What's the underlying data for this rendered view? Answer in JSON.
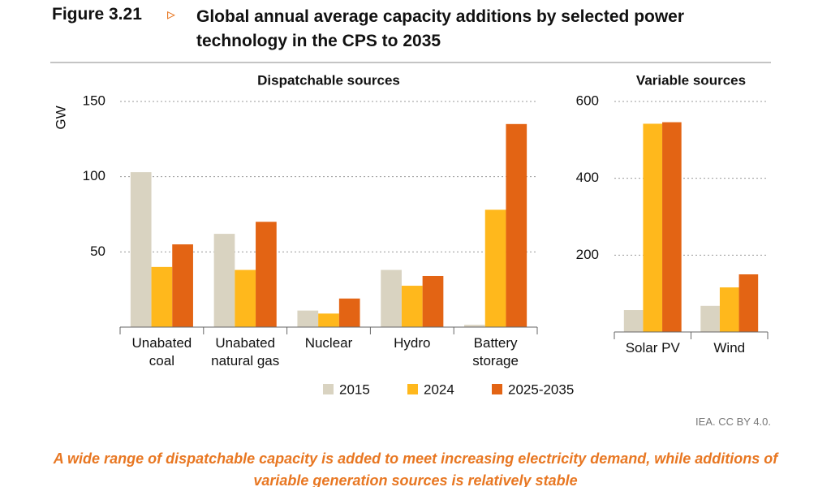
{
  "figure": {
    "label": "Figure 3.21",
    "marker": "▹",
    "title": "Global annual average capacity additions by selected power technology in the CPS to 2035"
  },
  "source": "IEA. CC BY 4.0.",
  "caption": "A wide range of dispatchable capacity is added to meet increasing electricity demand, while additions of variable generation sources is relatively stable",
  "chart_data": [
    {
      "type": "bar",
      "title": "Dispatchable sources",
      "y_label": "GW",
      "categories": [
        "Unabated coal",
        "Unabated natural gas",
        "Nuclear",
        "Hydro",
        "Battery storage"
      ],
      "series": [
        {
          "name": "2015",
          "color": "#d9d3c1",
          "values": [
            103,
            62,
            11,
            38,
            1.5
          ]
        },
        {
          "name": "2024",
          "color": "#ffb81c",
          "values": [
            40,
            38,
            9,
            27.5,
            78
          ]
        },
        {
          "name": "2025-2035",
          "color": "#e36414",
          "values": [
            55,
            70,
            19,
            34,
            135
          ]
        }
      ],
      "ylim": [
        0,
        150
      ],
      "yticks": [
        50,
        100,
        150
      ],
      "grid": true,
      "legend": "bottom"
    },
    {
      "type": "bar",
      "title": "Variable sources",
      "categories": [
        "Solar PV",
        "Wind"
      ],
      "series": [
        {
          "name": "2015",
          "color": "#d9d3c1",
          "values": [
            57,
            68
          ]
        },
        {
          "name": "2024",
          "color": "#ffb81c",
          "values": [
            542,
            116
          ]
        },
        {
          "name": "2025-2035",
          "color": "#e36414",
          "values": [
            546,
            150
          ]
        }
      ],
      "ylim": [
        0,
        600
      ],
      "yticks": [
        200,
        400,
        600
      ],
      "grid": true
    }
  ]
}
